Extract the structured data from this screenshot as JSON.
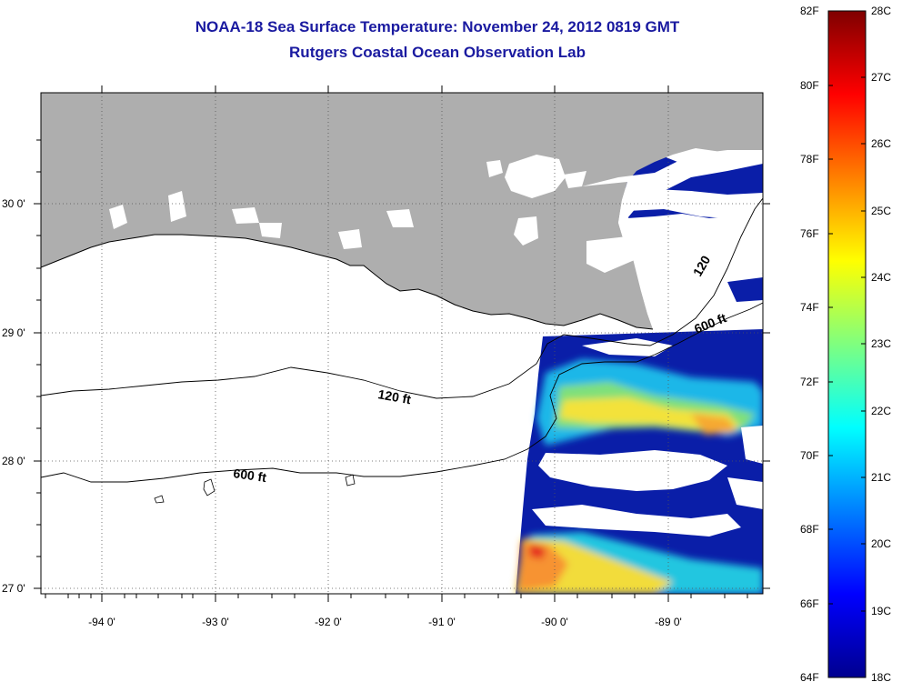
{
  "title": {
    "line1": "NOAA-18 Sea Surface Temperature:  November 24, 2012 0819 GMT",
    "line2": "Rutgers Coastal Ocean Observation Lab"
  },
  "map": {
    "latitude_labels": [
      "30 0'",
      "29 0'",
      "28 0'",
      "27 0'"
    ],
    "longitude_labels": [
      "-94 0'",
      "-93 0'",
      "-92 0'",
      "-91 0'",
      "-90 0'",
      "-89 0'"
    ],
    "contour_labels": {
      "c120_west": "120 ft",
      "c600_west": "600 ft",
      "c120_east": "120",
      "c600_east": "600 ft"
    },
    "colors": {
      "land": "#aeaeae",
      "cloud": "#ffffff",
      "ocean_cold": "#0a1ea8"
    }
  },
  "colorbar": {
    "fahrenheit_labels": [
      "82F",
      "80F",
      "78F",
      "76F",
      "74F",
      "72F",
      "70F",
      "68F",
      "66F",
      "64F"
    ],
    "celsius_labels": [
      "28C",
      "27C",
      "26C",
      "25C",
      "24C",
      "23C",
      "22C",
      "21C",
      "20C",
      "19C",
      "18C"
    ],
    "range_f": [
      64,
      82
    ],
    "range_c": [
      18,
      28
    ],
    "colormap": "jet"
  }
}
